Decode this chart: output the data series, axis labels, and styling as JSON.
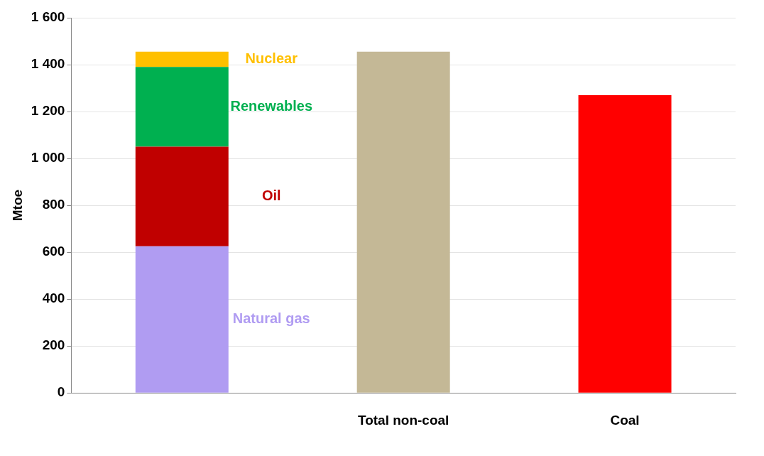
{
  "chart_data": {
    "type": "bar",
    "stacked": true,
    "ylabel": "Mtoe",
    "categories": [
      null,
      "Total non-coal",
      "Coal"
    ],
    "series": [
      {
        "name": "Natural gas",
        "color": "#b09cf2",
        "values": [
          625,
          null,
          null
        ]
      },
      {
        "name": "Oil",
        "color": "#c00000",
        "values": [
          425,
          null,
          null
        ]
      },
      {
        "name": "Renewables",
        "color": "#00b050",
        "values": [
          340,
          null,
          null
        ]
      },
      {
        "name": "Nuclear",
        "color": "#ffc000",
        "values": [
          65,
          null,
          null
        ]
      },
      {
        "colors": [
          "#c4b896",
          "#c4b896",
          "#ff0000"
        ],
        "values": [
          null,
          1455,
          1270
        ]
      }
    ],
    "ylim": [
      0,
      1600
    ],
    "yticks": [
      0,
      200,
      400,
      600,
      800,
      {
        "value": 1000,
        "label": "1 000"
      },
      {
        "value": 1200,
        "label": "1 200"
      },
      {
        "value": 1400,
        "label": "1 400"
      },
      {
        "value": 1600,
        "label": "1 600"
      }
    ],
    "grid": "y",
    "legend": false
  }
}
